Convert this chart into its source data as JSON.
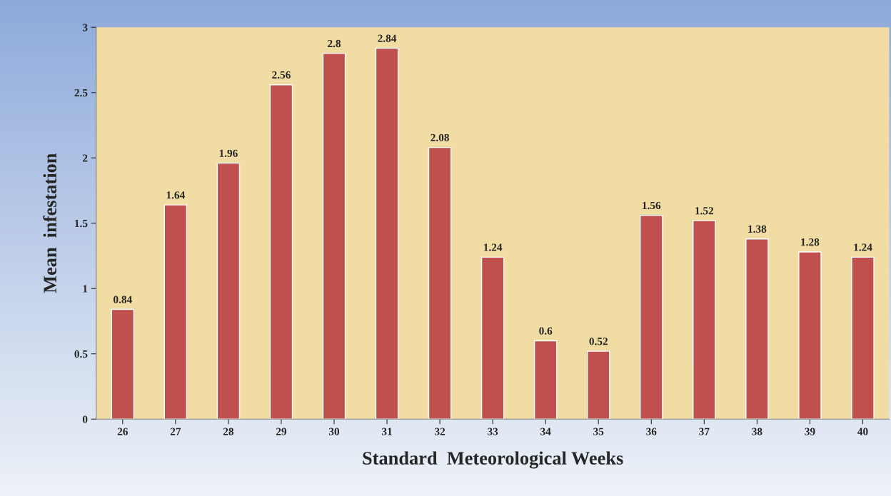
{
  "chart_data": {
    "type": "bar",
    "xlabel": "Standard  Meteorological Weeks",
    "ylabel": "Mean  infestation",
    "categories": [
      "26",
      "27",
      "28",
      "29",
      "30",
      "31",
      "32",
      "33",
      "34",
      "35",
      "36",
      "37",
      "38",
      "39",
      "40"
    ],
    "values": [
      0.84,
      1.64,
      1.96,
      2.56,
      2.8,
      2.84,
      2.08,
      1.24,
      0.6,
      0.52,
      1.56,
      1.52,
      1.38,
      1.28,
      1.24
    ],
    "color": "#c0504d",
    "ylim": [
      0,
      3
    ],
    "yticks": [
      0,
      0.5,
      1,
      1.5,
      2,
      2.5,
      3
    ],
    "data_labels": true,
    "grid": false,
    "legend": false
  }
}
